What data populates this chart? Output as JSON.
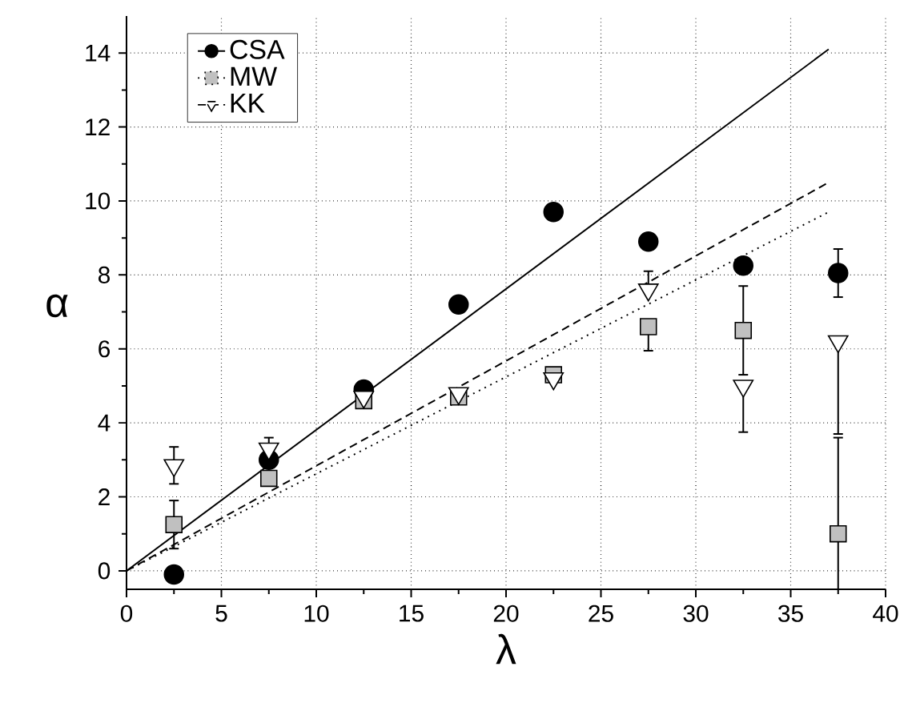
{
  "chart_data": {
    "type": "scatter",
    "xlabel": "λ",
    "ylabel": "α",
    "xlim": [
      0,
      40
    ],
    "ylim": [
      -0.5,
      15
    ],
    "xticks": [
      0,
      5,
      10,
      15,
      20,
      25,
      30,
      35,
      40
    ],
    "yticks": [
      0,
      2,
      4,
      6,
      8,
      10,
      12,
      14
    ],
    "grid": true,
    "legend": "top left",
    "series": [
      {
        "name": "CSA",
        "marker": "circle",
        "color": "#000000",
        "x": [
          2.5,
          7.5,
          12.5,
          17.5,
          22.5,
          27.5,
          32.5,
          37.5
        ],
        "values": [
          -0.1,
          3.0,
          4.9,
          7.2,
          9.7,
          8.9,
          8.25,
          8.05
        ],
        "errors": [
          null,
          null,
          null,
          null,
          null,
          null,
          null,
          [
            7.4,
            8.7
          ]
        ]
      },
      {
        "name": "MW",
        "marker": "square",
        "color": "#c0c0c0",
        "x": [
          2.5,
          7.5,
          12.5,
          17.5,
          22.5,
          27.5,
          32.5,
          37.5
        ],
        "values": [
          1.25,
          2.5,
          4.6,
          4.7,
          5.3,
          6.6,
          6.5,
          1.0
        ],
        "errors": [
          0.65,
          null,
          null,
          null,
          null,
          [
            5.95,
            6.6
          ],
          [
            5.3,
            7.7
          ],
          [
            -0.5,
            3.6
          ]
        ]
      },
      {
        "name": "KK",
        "marker": "triangle",
        "color": "#ffffff",
        "x": [
          2.5,
          7.5,
          12.5,
          17.5,
          22.5,
          27.5,
          32.5,
          37.5
        ],
        "values": [
          2.85,
          3.3,
          4.7,
          4.8,
          5.2,
          7.6,
          5.0,
          6.2
        ],
        "errors": [
          0.5,
          0.3,
          null,
          null,
          null,
          [
            7.6,
            8.1
          ],
          [
            3.75,
            5.0
          ],
          [
            3.7,
            6.2
          ]
        ]
      },
      {
        "type": "line",
        "line_style": "solid",
        "color": "#000000",
        "x": [
          0,
          37
        ],
        "values": [
          0,
          14.1
        ]
      },
      {
        "type": "line",
        "line_style": "dotted",
        "color": "#000000",
        "x": [
          0,
          37
        ],
        "values": [
          0,
          9.7
        ]
      },
      {
        "type": "line",
        "line_style": "dashed",
        "color": "#000000",
        "x": [
          0,
          37
        ],
        "values": [
          0,
          10.5
        ]
      }
    ]
  }
}
